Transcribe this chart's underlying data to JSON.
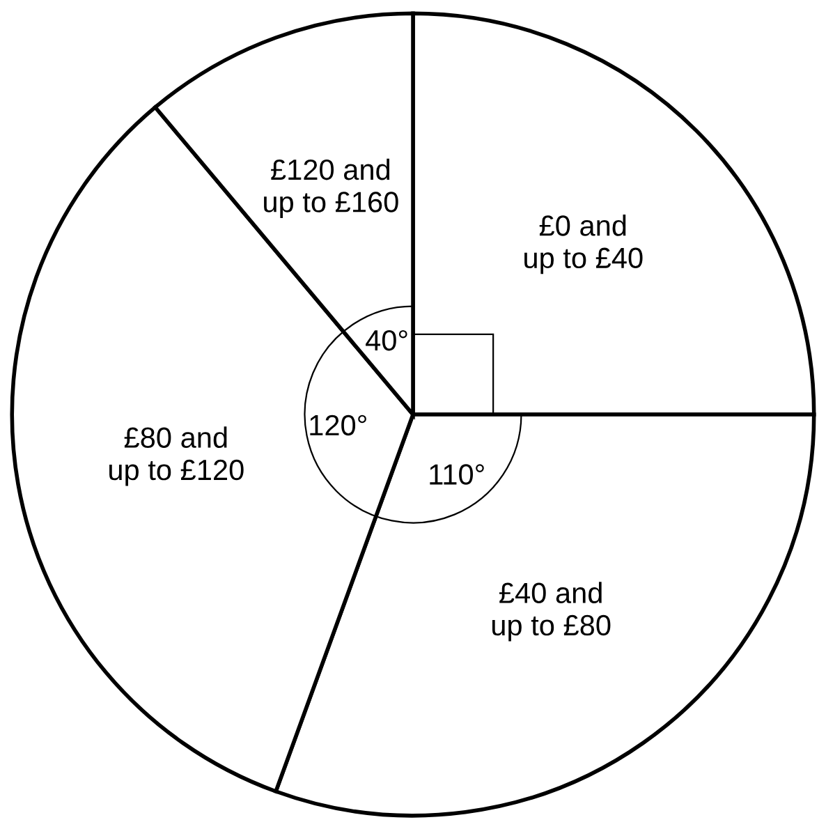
{
  "chart_data": {
    "type": "pie",
    "categories": [
      "£0 and\nup to £40",
      "£40 and\nup to £80",
      "£80 and\nup to £120",
      "£120 and\nup to £160"
    ],
    "values": [
      90,
      110,
      120,
      40
    ],
    "colors": [
      "#ffffff",
      "#ffffff",
      "#ffffff",
      "#ffffff"
    ],
    "value_labels": [
      null,
      "110°",
      "120°",
      "40°"
    ],
    "legend": false
  }
}
